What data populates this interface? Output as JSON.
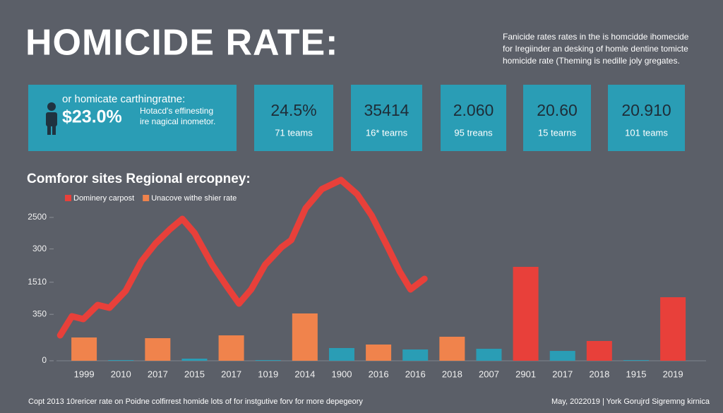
{
  "title": "HOMICIDE RATE:",
  "description": [
    "Fanicide rates rates in the is homcidde ihomecide",
    "for Iregiinder an desking of homle dentine tomicte",
    "homicide rate (Theming is nedille joly gregates."
  ],
  "cards": [
    {
      "heading": "or homicate carthingratne:",
      "value": "$23.0%",
      "lines": [
        "Hotacd's effinesting",
        "ire nagical inometor."
      ]
    },
    {
      "value": "24.5%",
      "sub": "71 teams"
    },
    {
      "value": "35414",
      "sub": "16* tearns"
    },
    {
      "value": "2.060",
      "sub": "95 treans"
    },
    {
      "value": "20.60",
      "sub": "15 tearns"
    },
    {
      "value": "20.910",
      "sub": "101 teams"
    }
  ],
  "chart_data": {
    "type": "bar",
    "title": "Comforor sites Regional ercopney:",
    "categories": [
      "1999",
      "2010",
      "2017",
      "2015",
      "2017",
      "1019",
      "2014",
      "1900",
      "2016",
      "2016",
      "2018",
      "2007",
      "2901",
      "2017",
      "2018",
      "1915",
      "2019"
    ],
    "xlim": [
      -0.75,
      16.9
    ],
    "ylim": [
      0,
      3300
    ],
    "yticks": [
      0,
      {
        "value": 810,
        "label": "350"
      },
      {
        "value": 1370,
        "label": "1510"
      },
      {
        "value": 1950,
        "label": "300"
      },
      2500
    ],
    "series": [
      {
        "name": "Dominery carpost",
        "color": "#e8403a",
        "type": "line",
        "x": [
          -0.65,
          -0.33,
          -0.02,
          0.37,
          0.69,
          1.13,
          1.56,
          1.94,
          2.33,
          2.67,
          3.0,
          3.48,
          3.87,
          4.21,
          4.54,
          4.92,
          5.37,
          5.63,
          6.02,
          6.46,
          6.98,
          7.42,
          7.81,
          8.25,
          8.58,
          8.87,
          9.25
        ],
        "values": [
          443,
          776,
          727,
          973,
          924,
          1219,
          1736,
          2044,
          2291,
          2475,
          2229,
          1675,
          1305,
          997,
          1244,
          1675,
          1983,
          2106,
          2660,
          2993,
          3153,
          2906,
          2537,
          1983,
          1552,
          1244,
          1429
        ]
      },
      {
        "name": "Unacove withe shier rate",
        "color": "#f0834c",
        "type": "bar",
        "values": [
          406,
          12,
          394,
          37,
          443,
          12,
          825,
          222,
          283,
          197,
          419,
          209,
          1638,
          172,
          345,
          12,
          1108
        ],
        "colors": [
          "#f0834c",
          "#2a9db5",
          "#f0834c",
          "#2a9db5",
          "#f0834c",
          "#2a9db5",
          "#f0834c",
          "#2a9db5",
          "#f0834c",
          "#2a9db5",
          "#f0834c",
          "#2a9db5",
          "#e8403a",
          "#2a9db5",
          "#e8403a",
          "#2a9db5",
          "#e8403a"
        ]
      }
    ]
  },
  "footer": {
    "left": "Copt 2013 10rericer rate on Poidne colfirrest homide lots of for instgutive forv for more depegeory",
    "right": "May, 2022019 | York Gorujrd Sigremng kirnica"
  }
}
